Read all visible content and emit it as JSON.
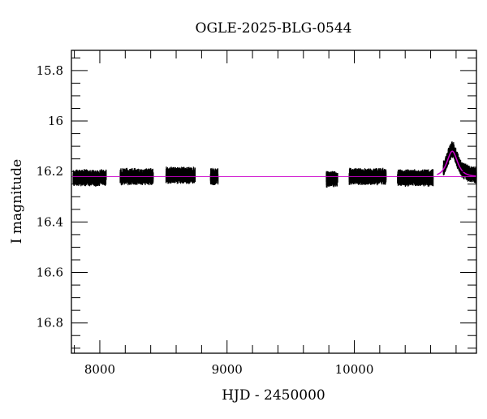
{
  "chart_data": {
    "type": "scatter",
    "title": "OGLE-2025-BLG-0544",
    "xlabel": "HJD - 2450000",
    "ylabel": "I magnitude",
    "xlim": [
      7777,
      10960
    ],
    "ylim": [
      16.92,
      15.72
    ],
    "y_inverted": true,
    "grid": false,
    "x_ticks": [
      8000,
      9000,
      10000
    ],
    "x_tick_labels": [
      "8000",
      "9000",
      "10000"
    ],
    "y_ticks": [
      15.8,
      16.0,
      16.2,
      16.4,
      16.6,
      16.8
    ],
    "y_tick_labels": [
      "15.8",
      "16",
      "16.2",
      "16.4",
      "16.6",
      "16.8"
    ],
    "baseline_mag": 16.22,
    "observing_seasons": [
      {
        "start": 7790,
        "end": 8050,
        "mag": 16.225
      },
      {
        "start": 8160,
        "end": 8420,
        "mag": 16.22
      },
      {
        "start": 8520,
        "end": 8750,
        "mag": 16.215
      },
      {
        "start": 8870,
        "end": 8930,
        "mag": 16.22
      },
      {
        "start": 9780,
        "end": 9870,
        "mag": 16.23
      },
      {
        "start": 9960,
        "end": 10250,
        "mag": 16.22
      },
      {
        "start": 10340,
        "end": 10620,
        "mag": 16.225
      },
      {
        "start": 10700,
        "end": 10960,
        "mag": 16.215
      }
    ],
    "scatter_mag": 0.02,
    "model": {
      "t0": 10770,
      "peak_mag": 16.12,
      "tE": 35
    },
    "colors": {
      "data": "#000000",
      "model": "#cc00cc",
      "baseline": "#cc00cc"
    }
  }
}
